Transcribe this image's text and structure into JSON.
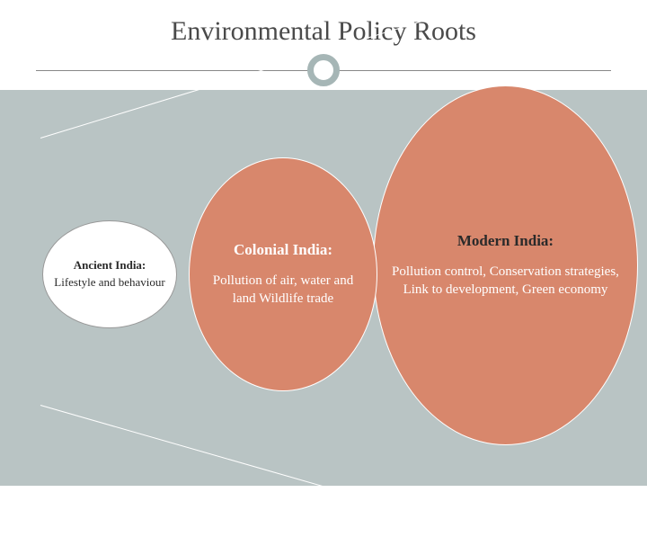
{
  "title": "Environmental Policy Roots",
  "colors": {
    "ellipse_fill": "#d8876c",
    "ellipse_border": "#ffffff",
    "band_bg": "#b9c4c4",
    "title_circle_border": "#a6b6b6",
    "ancient_bg": "#ffffff",
    "ancient_border": "#999999",
    "text_dark": "#2a2a2a",
    "text_light": "#ffffff"
  },
  "diagram": {
    "type": "nested-ellipse",
    "ancient": {
      "heading": "Ancient India:",
      "body": "Lifestyle and behaviour"
    },
    "colonial": {
      "heading": "Colonial India:",
      "body": "Pollution of air, water and land Wildlife trade"
    },
    "modern": {
      "heading": "Modern India:",
      "body": "Pollution control, Conservation strategies, Link to development, Green economy"
    }
  }
}
